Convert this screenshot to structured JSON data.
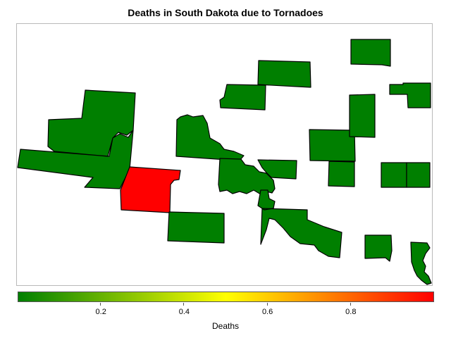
{
  "title": "Deaths in South Dakota due to Tornadoes",
  "colors": {
    "low": "#007f00",
    "mid": "#ffff00",
    "high": "#ff0000"
  },
  "legend": {
    "label": "Deaths",
    "min": 0,
    "max": 1,
    "ticks": [
      "0.2",
      "0.4",
      "0.6",
      "0.8"
    ],
    "tick_values": [
      0.2,
      0.4,
      0.6,
      0.8
    ]
  },
  "map_data": {
    "region": "South Dakota",
    "metric": "Deaths",
    "counties": [
      {
        "id": "c-nw-large",
        "value": 0
      },
      {
        "id": "c-north-center",
        "value": 0
      },
      {
        "id": "c-north-east-small",
        "value": 0
      },
      {
        "id": "c-central-west",
        "value": 0
      },
      {
        "id": "c-red",
        "value": 1
      },
      {
        "id": "c-south-center",
        "value": 0
      },
      {
        "id": "c-central-river",
        "value": 0
      },
      {
        "id": "c-central-east",
        "value": 0
      },
      {
        "id": "c-south-river",
        "value": 0
      },
      {
        "id": "c-east-mid",
        "value": 0
      },
      {
        "id": "c-east-mid-small",
        "value": 0
      },
      {
        "id": "c-east-tall",
        "value": 0
      },
      {
        "id": "c-ne-top",
        "value": 0
      },
      {
        "id": "c-ne-right",
        "value": 0
      },
      {
        "id": "c-east-pair-left",
        "value": 0
      },
      {
        "id": "c-east-pair-right",
        "value": 0
      },
      {
        "id": "c-se-small",
        "value": 0
      },
      {
        "id": "c-se-corner",
        "value": 0
      }
    ]
  }
}
